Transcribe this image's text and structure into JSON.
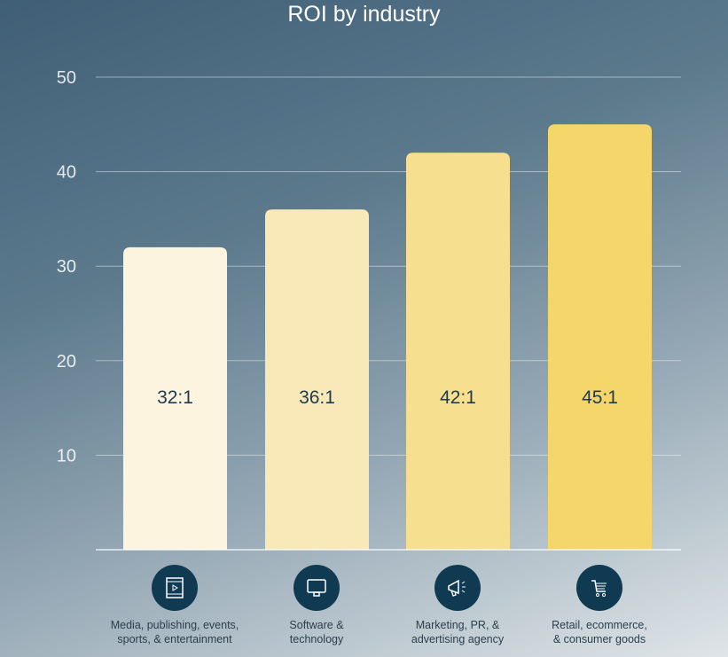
{
  "chart_data": {
    "type": "bar",
    "title": "ROI by industry",
    "categories": [
      "Media, publishing, events, sports, & entertainment",
      "Software & technology",
      "Marketing, PR, & advertising agency",
      "Retail, ecommerce, & consumer goods"
    ],
    "category_lines": [
      [
        "Media, publishing, events,",
        "sports, & entertainment"
      ],
      [
        "Software &",
        "technology"
      ],
      [
        "Marketing, PR, &",
        "advertising agency"
      ],
      [
        "Retail, ecommerce,",
        "& consumer goods"
      ]
    ],
    "values": [
      32,
      36,
      42,
      45
    ],
    "data_labels": [
      "32:1",
      "36:1",
      "42:1",
      "45:1"
    ],
    "ylim": [
      0,
      50
    ],
    "yticks": [
      10,
      20,
      30,
      40,
      50
    ],
    "grid": true,
    "xlabel": "",
    "ylabel": "",
    "colors": [
      "#fcf4de",
      "#f9e9b9",
      "#f6df8f",
      "#f4d66b"
    ],
    "icons": [
      "film-icon",
      "monitor-icon",
      "megaphone-icon",
      "shopping-cart-icon"
    ]
  }
}
